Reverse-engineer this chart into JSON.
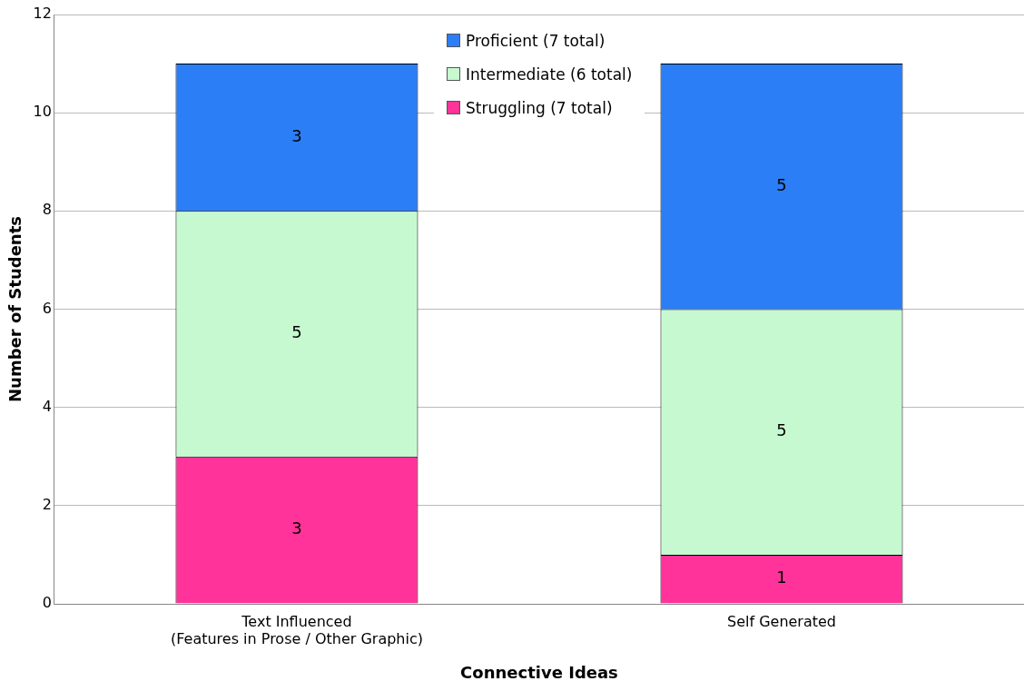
{
  "chart_data": {
    "type": "bar",
    "stacked": true,
    "xlabel": "Connective Ideas",
    "ylabel": "Number of Students",
    "categories": [
      "Text Influenced\n(Features in Prose / Other Graphic)",
      "Self Generated"
    ],
    "series": [
      {
        "name": "Struggling (7 total)",
        "color": "#ff3399",
        "values": [
          3,
          1
        ]
      },
      {
        "name": "Intermediate (6 total)",
        "color": "#c6f9d0",
        "values": [
          5,
          5
        ]
      },
      {
        "name": "Proficient (7 total)",
        "color": "#2b7ef5",
        "values": [
          3,
          5
        ]
      }
    ],
    "ylim": [
      0,
      12
    ],
    "yticks": [
      0,
      2,
      4,
      6,
      8,
      10,
      12
    ],
    "grid": "y",
    "legend": "top",
    "data_labels": true
  }
}
